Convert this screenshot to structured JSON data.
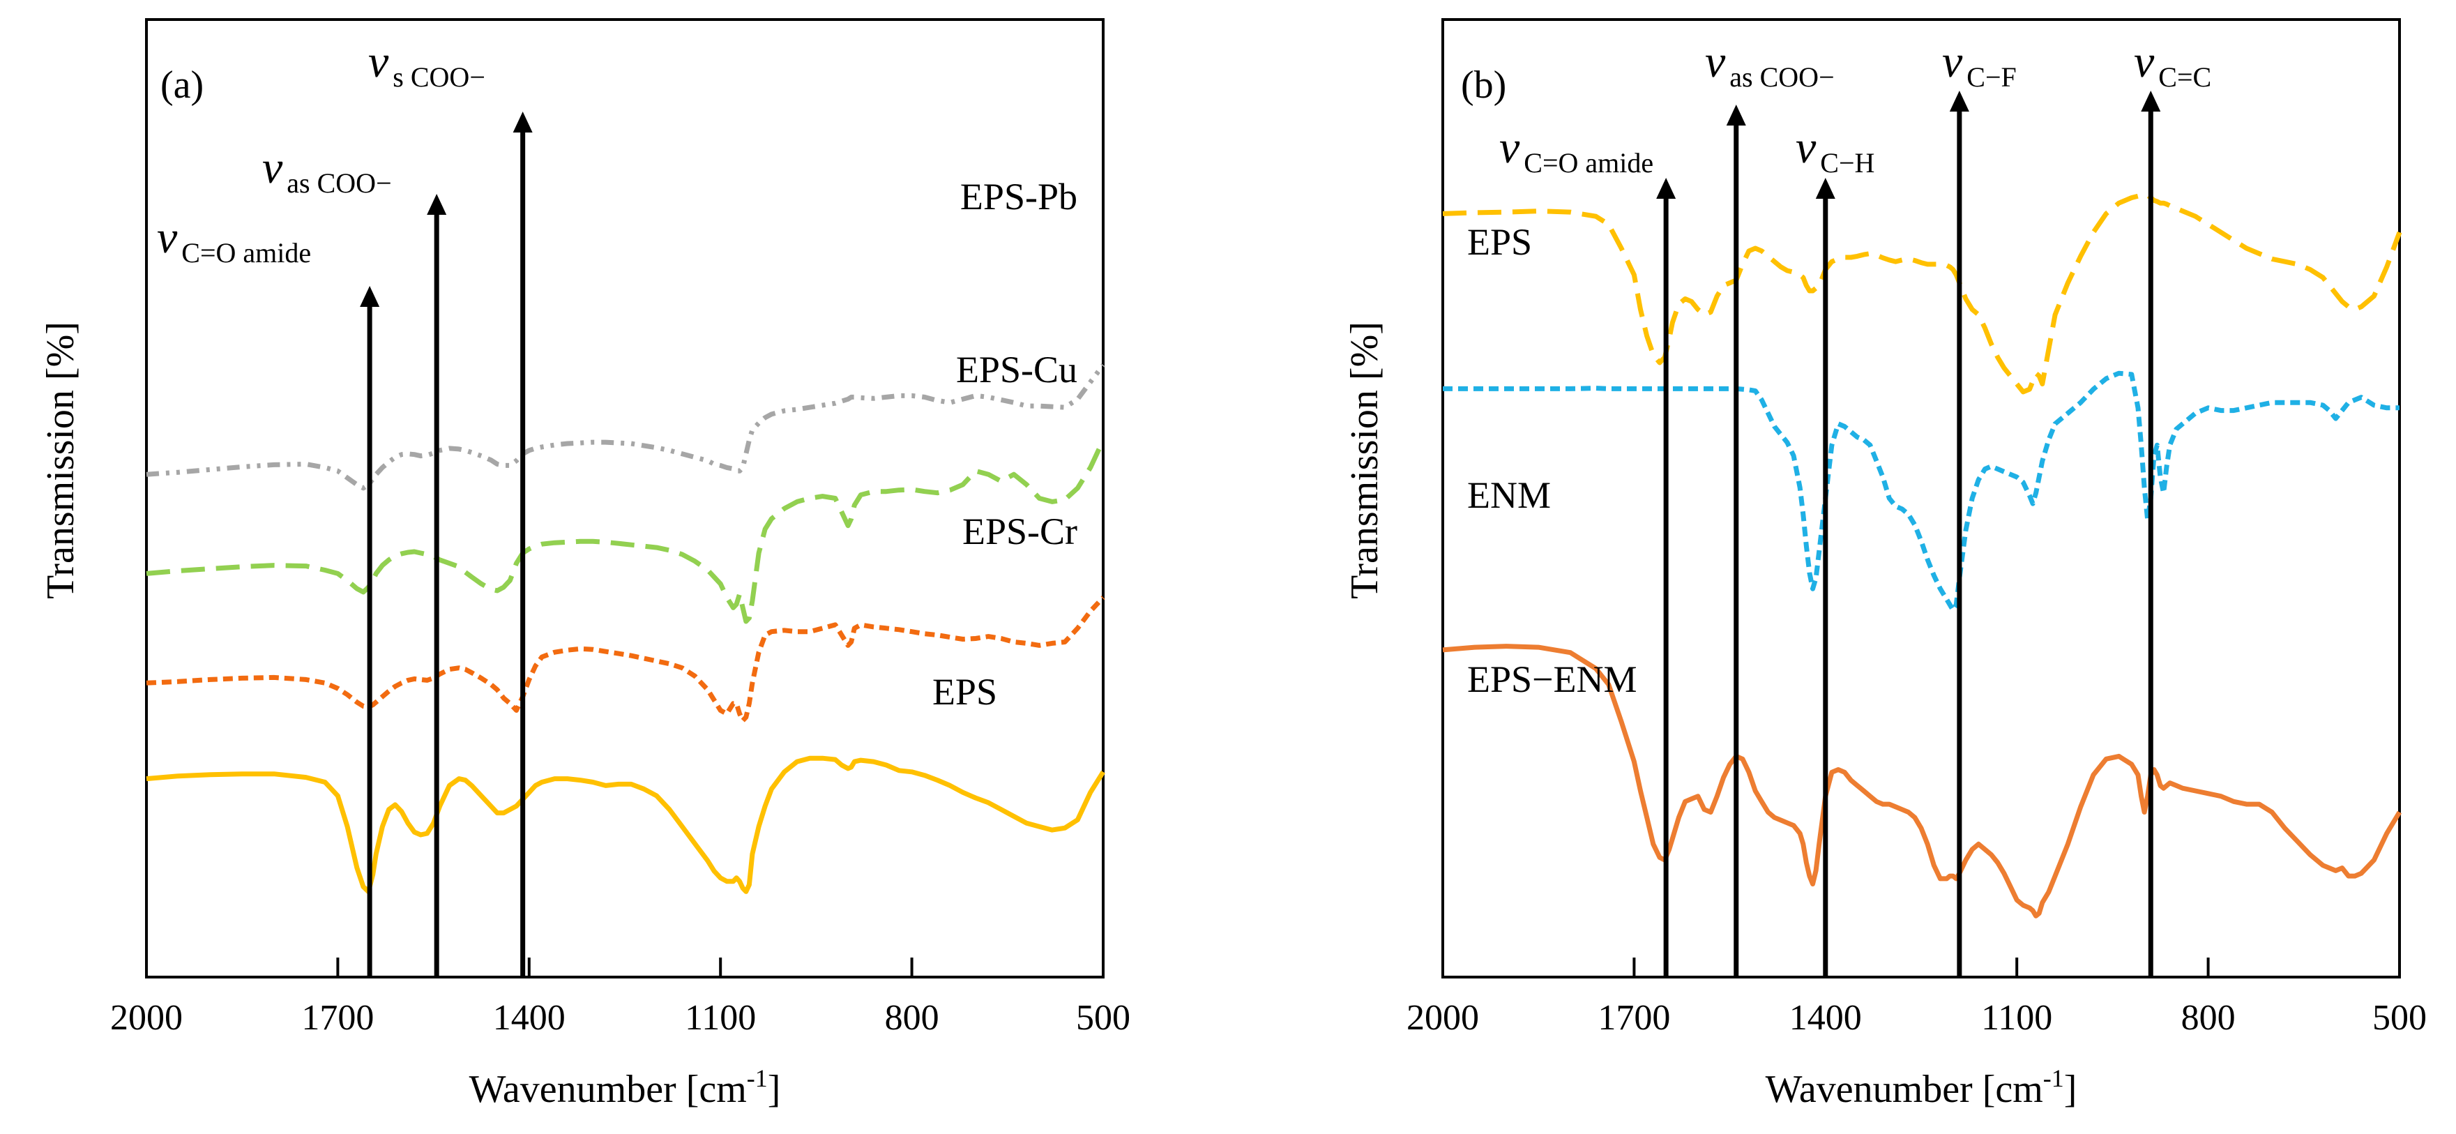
{
  "chart_data": [
    {
      "type": "line",
      "panel_label": "(a)",
      "xlabel": "Wavenumber [cm",
      "xlabel_sup": "-1",
      "xlabel_end": "]",
      "ylabel": "Transmission  [%]",
      "xlim": [
        2000,
        500
      ],
      "x_ticks": [
        "2000",
        "1700",
        "1400",
        "1100",
        "800",
        "500"
      ],
      "y_ticks": [],
      "grid": false,
      "x": [
        2000,
        1950,
        1900,
        1850,
        1800,
        1750,
        1720,
        1700,
        1685,
        1670,
        1660,
        1652,
        1645,
        1640,
        1630,
        1620,
        1610,
        1600,
        1590,
        1580,
        1570,
        1560,
        1550,
        1540,
        1525,
        1510,
        1500,
        1490,
        1475,
        1460,
        1450,
        1440,
        1430,
        1420,
        1410,
        1400,
        1390,
        1380,
        1360,
        1340,
        1320,
        1300,
        1280,
        1260,
        1240,
        1220,
        1200,
        1180,
        1160,
        1140,
        1120,
        1110,
        1100,
        1090,
        1080,
        1075,
        1070,
        1065,
        1060,
        1055,
        1050,
        1040,
        1030,
        1020,
        1000,
        980,
        960,
        940,
        920,
        910,
        900,
        895,
        890,
        880,
        860,
        840,
        820,
        800,
        780,
        760,
        740,
        720,
        700,
        680,
        660,
        640,
        620,
        600,
        580,
        560,
        540,
        520,
        500
      ],
      "series": [
        {
          "name": "EPS-Pb",
          "color": "#A6A6A6",
          "dash": "dashdotdot",
          "values": [
            13.5,
            13.8,
            14.2,
            14.6,
            14.9,
            15.0,
            14.5,
            14.0,
            13.0,
            12.0,
            11.5,
            12.0,
            12.8,
            13.5,
            14.5,
            15.3,
            16.0,
            16.4,
            16.5,
            16.4,
            16.2,
            16.3,
            16.6,
            17.0,
            17.3,
            17.2,
            17.0,
            16.7,
            16.2,
            15.6,
            15.0,
            14.8,
            14.8,
            15.5,
            16.5,
            17.0,
            17.3,
            17.5,
            17.8,
            18.0,
            18.1,
            18.2,
            18.2,
            18.1,
            18.0,
            17.7,
            17.4,
            17.0,
            16.5,
            16.0,
            15.5,
            15.0,
            14.8,
            14.5,
            14.3,
            14.0,
            14.0,
            14.5,
            16.5,
            18.5,
            20.0,
            21.0,
            21.8,
            22.3,
            22.8,
            23.0,
            23.3,
            23.6,
            23.9,
            24.2,
            24.5,
            24.8,
            24.8,
            24.7,
            24.6,
            24.8,
            25.0,
            25.0,
            24.8,
            24.3,
            24.0,
            24.5,
            25.0,
            24.8,
            24.4,
            24.0,
            23.5,
            23.5,
            23.4,
            23.3,
            24.5,
            27.0,
            29.5
          ]
        },
        {
          "name": "EPS-Cu",
          "color": "#92D050",
          "dash": "longdash",
          "values": [
            -1.0,
            -0.6,
            -0.3,
            0.0,
            0.2,
            0.1,
            -0.5,
            -1.0,
            -2.0,
            -3.2,
            -3.7,
            -3.0,
            -2.0,
            -1.0,
            0.2,
            1.0,
            1.6,
            1.9,
            2.1,
            2.2,
            2.0,
            1.8,
            1.5,
            1.0,
            0.5,
            0.0,
            -0.8,
            -1.5,
            -2.5,
            -3.3,
            -3.5,
            -3.0,
            -2.0,
            0.5,
            2.0,
            2.6,
            3.0,
            3.3,
            3.5,
            3.6,
            3.7,
            3.7,
            3.6,
            3.4,
            3.2,
            3.0,
            2.8,
            2.4,
            1.8,
            0.8,
            -0.5,
            -1.5,
            -2.5,
            -4.5,
            -6.0,
            -5.5,
            -4.0,
            -6.0,
            -8.0,
            -7.5,
            -5.0,
            2.0,
            5.5,
            7.0,
            8.5,
            9.5,
            10.0,
            10.3,
            10.0,
            8.0,
            6.0,
            7.0,
            9.0,
            10.5,
            11.0,
            11.0,
            11.2,
            11.3,
            11.0,
            10.8,
            11.2,
            12.0,
            14.0,
            13.5,
            12.5,
            13.5,
            12.0,
            10.0,
            9.5,
            9.8,
            11.5,
            14.5,
            18.5
          ]
        },
        {
          "name": "EPS-Cr",
          "color": "#F26B10",
          "dash": "shortdash",
          "values": [
            -17.0,
            -16.8,
            -16.5,
            -16.3,
            -16.2,
            -16.5,
            -17.0,
            -17.8,
            -18.7,
            -19.8,
            -20.4,
            -20.5,
            -20.2,
            -19.8,
            -19.0,
            -18.2,
            -17.5,
            -17.0,
            -16.6,
            -16.4,
            -16.5,
            -16.6,
            -16.3,
            -15.7,
            -15.0,
            -14.8,
            -15.0,
            -15.5,
            -16.3,
            -17.2,
            -18.0,
            -19.2,
            -20.0,
            -21.0,
            -19.0,
            -16.5,
            -14.5,
            -13.2,
            -12.5,
            -12.2,
            -12.0,
            -12.1,
            -12.4,
            -12.7,
            -13.0,
            -13.4,
            -13.8,
            -14.2,
            -14.8,
            -16.0,
            -18.0,
            -19.5,
            -21.0,
            -21.5,
            -20.0,
            -20.0,
            -21.5,
            -22.5,
            -22.0,
            -20.0,
            -17.0,
            -12.5,
            -10.0,
            -9.5,
            -9.3,
            -9.5,
            -9.5,
            -9.0,
            -8.5,
            -10.0,
            -11.5,
            -11.0,
            -9.0,
            -8.5,
            -8.8,
            -9.0,
            -9.2,
            -9.5,
            -9.8,
            -10.0,
            -10.3,
            -10.6,
            -10.5,
            -10.2,
            -10.5,
            -11.0,
            -11.2,
            -11.5,
            -11.2,
            -11.0,
            -9.0,
            -6.5,
            -4.5
          ]
        },
        {
          "name": "EPS",
          "color": "#FFC000",
          "dash": "solid",
          "values": [
            -31.0,
            -30.6,
            -30.4,
            -30.3,
            -30.3,
            -30.8,
            -31.5,
            -33.5,
            -38.0,
            -44.0,
            -46.8,
            -47.5,
            -45.0,
            -42.0,
            -38.0,
            -35.5,
            -34.8,
            -35.8,
            -37.5,
            -38.8,
            -39.2,
            -39.0,
            -37.5,
            -35.0,
            -32.0,
            -31.0,
            -31.2,
            -32.0,
            -33.5,
            -35.0,
            -36.0,
            -36.0,
            -35.5,
            -35.0,
            -34.0,
            -33.0,
            -32.0,
            -31.5,
            -31.0,
            -31.0,
            -31.2,
            -31.5,
            -32.0,
            -31.8,
            -31.8,
            -32.5,
            -33.5,
            -35.5,
            -38.0,
            -40.5,
            -43.0,
            -44.5,
            -45.5,
            -46.0,
            -46.0,
            -45.5,
            -46.0,
            -47.0,
            -47.5,
            -46.5,
            -42.0,
            -38.0,
            -35.0,
            -32.5,
            -30.0,
            -28.5,
            -28.0,
            -28.0,
            -28.2,
            -29.0,
            -29.5,
            -29.3,
            -28.5,
            -28.3,
            -28.5,
            -29.0,
            -29.8,
            -30.0,
            -30.5,
            -31.2,
            -32.0,
            -33.0,
            -33.8,
            -34.5,
            -35.5,
            -36.5,
            -37.5,
            -38.0,
            -38.5,
            -38.2,
            -37.0,
            -33.0,
            -30.0
          ]
        }
      ],
      "series_labels": [
        "EPS-Pb",
        "EPS-Cu",
        "EPS-Cr",
        "EPS"
      ],
      "annotations": [
        {
          "x": 1650,
          "v": "v",
          "sub": "C=O amide"
        },
        {
          "x": 1545,
          "v": "v",
          "sub": "as COO−"
        },
        {
          "x": 1410,
          "v": "v",
          "sub": "s COO−"
        }
      ]
    },
    {
      "type": "line",
      "panel_label": "(b)",
      "xlabel": "Wavenumber [cm",
      "xlabel_sup": "-1",
      "xlabel_end": "]",
      "ylabel": "Transmission  [%]",
      "xlim": [
        2000,
        500
      ],
      "x_ticks": [
        "2000",
        "1700",
        "1400",
        "1100",
        "800",
        "500"
      ],
      "y_ticks": [],
      "grid": false,
      "x": [
        2000,
        1950,
        1900,
        1850,
        1800,
        1760,
        1740,
        1720,
        1700,
        1690,
        1680,
        1670,
        1660,
        1652,
        1645,
        1640,
        1630,
        1620,
        1610,
        1600,
        1590,
        1580,
        1570,
        1560,
        1550,
        1540,
        1530,
        1520,
        1510,
        1500,
        1490,
        1480,
        1470,
        1460,
        1450,
        1440,
        1435,
        1430,
        1425,
        1420,
        1415,
        1410,
        1400,
        1390,
        1380,
        1370,
        1360,
        1350,
        1340,
        1330,
        1320,
        1310,
        1300,
        1290,
        1280,
        1270,
        1260,
        1250,
        1240,
        1230,
        1220,
        1210,
        1205,
        1200,
        1195,
        1190,
        1180,
        1170,
        1160,
        1150,
        1140,
        1130,
        1120,
        1110,
        1100,
        1090,
        1080,
        1075,
        1070,
        1065,
        1060,
        1050,
        1040,
        1020,
        1000,
        980,
        960,
        940,
        920,
        910,
        905,
        900,
        895,
        890,
        885,
        880,
        875,
        870,
        865,
        860,
        850,
        840,
        820,
        800,
        780,
        760,
        740,
        720,
        700,
        680,
        660,
        640,
        620,
        610,
        600,
        590,
        580,
        570,
        560,
        540,
        520,
        500
      ],
      "series": [
        {
          "name": "EPS",
          "color": "#FFC000",
          "dash": "longdash",
          "values": [
            33.5,
            33.7,
            33.8,
            34.0,
            33.8,
            33.0,
            31.5,
            27.0,
            22.0,
            15.5,
            10.5,
            7.0,
            5.5,
            6.5,
            10.0,
            13.0,
            16.5,
            17.5,
            17.0,
            15.5,
            14.5,
            15.0,
            18.0,
            20.0,
            20.5,
            21.0,
            24.0,
            26.5,
            27.0,
            26.5,
            25.5,
            24.5,
            23.5,
            22.8,
            22.5,
            22.0,
            21.5,
            20.0,
            19.0,
            19.0,
            19.5,
            20.0,
            23.0,
            24.5,
            25.0,
            25.3,
            25.3,
            25.5,
            25.8,
            26.0,
            25.7,
            25.2,
            24.8,
            24.5,
            24.8,
            25.0,
            24.7,
            24.3,
            24.0,
            24.0,
            24.0,
            23.8,
            23.5,
            23.0,
            22.0,
            20.5,
            17.5,
            15.5,
            14.5,
            12.0,
            9.0,
            6.5,
            4.5,
            3.0,
            1.5,
            0.0,
            0.5,
            2.0,
            3.5,
            3.0,
            1.5,
            8.0,
            14.5,
            20.5,
            25.5,
            30.0,
            33.5,
            35.5,
            36.5,
            36.8,
            37.0,
            37.0,
            37.0,
            36.5,
            36.0,
            35.8,
            35.5,
            35.5,
            35.3,
            35.0,
            34.5,
            34.0,
            33.0,
            31.5,
            30.0,
            28.5,
            27.0,
            26.0,
            25.0,
            24.5,
            24.0,
            23.0,
            21.5,
            20.0,
            18.5,
            17.0,
            16.0,
            15.5,
            16.0,
            18.0,
            23.5,
            30.0
          ]
        },
        {
          "name": "ENM",
          "color": "#1FB0E5",
          "dash": "shortdash",
          "values": [
            0.6,
            0.6,
            0.6,
            0.6,
            0.6,
            0.7,
            0.6,
            0.6,
            0.6,
            0.6,
            0.6,
            0.6,
            0.6,
            0.6,
            0.6,
            0.6,
            0.6,
            0.6,
            0.6,
            0.6,
            0.6,
            0.6,
            0.6,
            0.6,
            0.6,
            0.6,
            0.5,
            0.4,
            0.2,
            -1.5,
            -4.0,
            -6.5,
            -8.0,
            -9.5,
            -12.0,
            -18.0,
            -23.0,
            -29.0,
            -34.0,
            -37.0,
            -35.0,
            -30.0,
            -20.0,
            -10.0,
            -6.0,
            -6.5,
            -7.5,
            -8.5,
            -9.0,
            -10.0,
            -13.0,
            -16.0,
            -20.0,
            -21.5,
            -22.0,
            -23.0,
            -25.0,
            -28.0,
            -31.5,
            -34.5,
            -37.0,
            -39.0,
            -40.0,
            -41.0,
            -40.0,
            -35.0,
            -26.0,
            -20.0,
            -16.5,
            -14.5,
            -14.0,
            -14.5,
            -15.0,
            -15.5,
            -16.0,
            -17.0,
            -19.5,
            -21.0,
            -19.0,
            -16.0,
            -13.0,
            -9.0,
            -6.0,
            -4.0,
            -2.0,
            0.5,
            2.5,
            3.5,
            3.3,
            -3.0,
            -10.0,
            -18.0,
            -24.0,
            -20.0,
            -12.0,
            -10.0,
            -16.0,
            -19.0,
            -14.0,
            -10.0,
            -7.0,
            -6.0,
            -4.0,
            -3.0,
            -3.5,
            -3.5,
            -3.0,
            -2.5,
            -2.0,
            -2.0,
            -2.0,
            -2.0,
            -2.5,
            -3.5,
            -5.0,
            -3.5,
            -2.0,
            -1.5,
            -1.0,
            -2.5,
            -3.0,
            -3.0
          ]
        },
        {
          "name": "EPS−ENM",
          "color": "#ED7D31",
          "dash": "solid",
          "values": [
            -48.5,
            -48.0,
            -47.8,
            -48.0,
            -49.0,
            -52.0,
            -55.0,
            -62.0,
            -69.5,
            -75.0,
            -80.0,
            -85.0,
            -87.5,
            -88.0,
            -86.0,
            -84.0,
            -80.0,
            -77.0,
            -76.5,
            -76.0,
            -78.5,
            -79.0,
            -76.0,
            -72.5,
            -70.0,
            -68.5,
            -69.0,
            -71.5,
            -75.0,
            -77.0,
            -79.0,
            -80.0,
            -80.5,
            -81.0,
            -81.5,
            -83.0,
            -85.0,
            -88.5,
            -91.0,
            -92.5,
            -90.0,
            -85.0,
            -76.0,
            -71.5,
            -71.0,
            -71.5,
            -73.0,
            -74.0,
            -75.0,
            -76.0,
            -77.0,
            -77.5,
            -77.5,
            -78.0,
            -78.5,
            -79.0,
            -80.0,
            -82.0,
            -85.0,
            -89.0,
            -91.5,
            -91.5,
            -91.0,
            -91.0,
            -91.5,
            -90.5,
            -88.0,
            -86.0,
            -85.0,
            -86.0,
            -87.0,
            -88.5,
            -90.5,
            -93.0,
            -95.5,
            -96.5,
            -97.0,
            -97.5,
            -98.5,
            -98.0,
            -96.0,
            -94.0,
            -91.0,
            -85.0,
            -78.0,
            -72.0,
            -69.0,
            -68.5,
            -70.0,
            -72.0,
            -76.0,
            -79.0,
            -76.0,
            -72.0,
            -71.0,
            -72.0,
            -74.0,
            -74.5,
            -74.0,
            -73.5,
            -74.0,
            -74.5,
            -75.0,
            -75.5,
            -76.0,
            -77.0,
            -77.5,
            -77.5,
            -79.0,
            -82.0,
            -84.5,
            -87.0,
            -89.0,
            -89.5,
            -90.0,
            -89.5,
            -91.0,
            -91.0,
            -90.5,
            -88.0,
            -83.0,
            -79.0
          ]
        }
      ],
      "series_labels": [
        "EPS",
        "ENM",
        "EPS−ENM"
      ],
      "annotations": [
        {
          "x": 1650,
          "v": "v",
          "sub": "C=O amide"
        },
        {
          "x": 1540,
          "v": "v",
          "sub": "as COO−"
        },
        {
          "x": 1400,
          "v": "v",
          "sub": "C−H"
        },
        {
          "x": 1190,
          "v": "v",
          "sub": "C−F"
        },
        {
          "x": 890,
          "v": "v",
          "sub": "C=C"
        }
      ]
    }
  ]
}
